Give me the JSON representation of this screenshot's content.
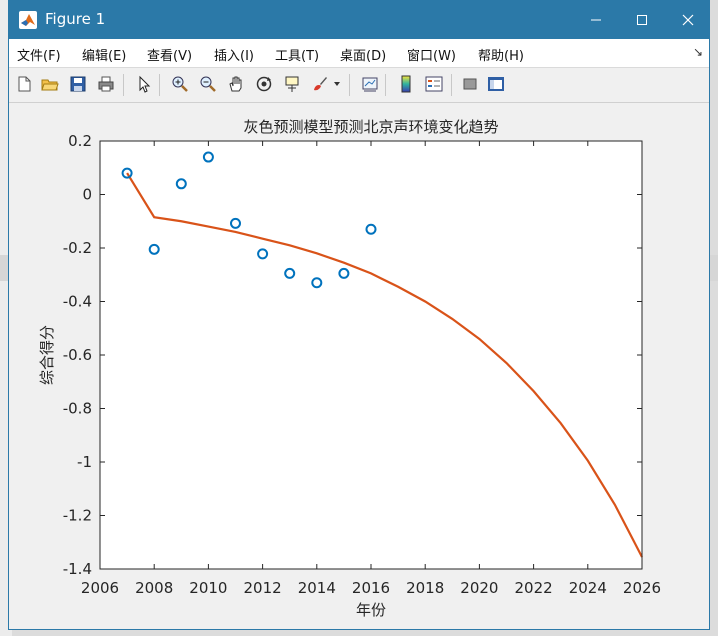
{
  "window": {
    "title": "Figure 1",
    "minimize_icon": "minimize-icon",
    "maximize_icon": "maximize-icon",
    "close_icon": "close-icon"
  },
  "menu": {
    "items": [
      "文件(F)",
      "编辑(E)",
      "查看(V)",
      "插入(I)",
      "工具(T)",
      "桌面(D)",
      "窗口(W)",
      "帮助(H)"
    ],
    "overflow_icon": "chevron-icon"
  },
  "toolbar": {
    "icons": [
      "new-figure-icon",
      "open-icon",
      "save-icon",
      "print-icon",
      "pointer-icon",
      "zoom-in-icon",
      "zoom-out-icon",
      "pan-icon",
      "rotate-icon",
      "data-cursor-icon",
      "brush-icon",
      "link-plot-icon",
      "colorbar-icon",
      "legend-icon",
      "hide-plot-tools-icon",
      "show-plot-tools-icon"
    ]
  },
  "chart_data": {
    "type": "scatter",
    "title": "灰色预测模型预测北京声环境变化趋势",
    "xlabel": "年份",
    "ylabel": "综合得分",
    "xlim": [
      2006,
      2026
    ],
    "ylim": [
      -1.4,
      0.2
    ],
    "xticks": [
      "2006",
      "2008",
      "2010",
      "2012",
      "2014",
      "2016",
      "2018",
      "2020",
      "2022",
      "2024",
      "2026"
    ],
    "yticks": [
      "0.2",
      "0",
      "-0.2",
      "-0.4",
      "-0.6",
      "-0.8",
      "-1",
      "-1.2",
      "-1.4"
    ],
    "grid": false,
    "series": [
      {
        "kind": "markers",
        "marker": "circle",
        "color": "#0072bd",
        "x": [
          2007,
          2008,
          2009,
          2010,
          2011,
          2012,
          2013,
          2014,
          2015,
          2016
        ],
        "y": [
          0.08,
          -0.205,
          0.04,
          0.14,
          -0.108,
          -0.222,
          -0.295,
          -0.33,
          -0.295,
          -0.13
        ]
      },
      {
        "kind": "line",
        "color": "#d95319",
        "x": [
          2007,
          2008,
          2009,
          2010,
          2011,
          2012,
          2013,
          2014,
          2015,
          2016,
          2017,
          2018,
          2019,
          2020,
          2021,
          2022,
          2023,
          2024,
          2025,
          2026
        ],
        "y": [
          0.08,
          -0.085,
          -0.1,
          -0.12,
          -0.14,
          -0.165,
          -0.19,
          -0.22,
          -0.255,
          -0.295,
          -0.345,
          -0.4,
          -0.465,
          -0.54,
          -0.63,
          -0.735,
          -0.855,
          -0.995,
          -1.16,
          -1.355
        ]
      }
    ]
  }
}
